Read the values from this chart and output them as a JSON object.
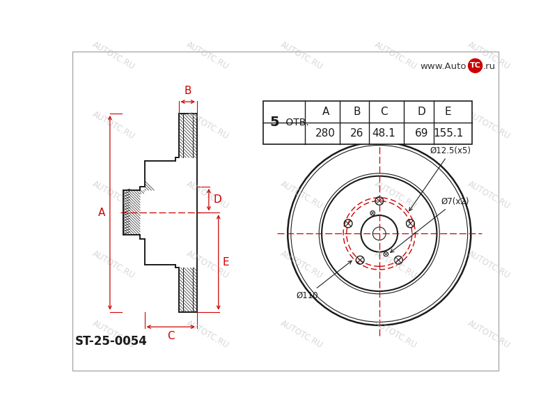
{
  "bg_color": "#ffffff",
  "line_color": "#1a1a1a",
  "red_color": "#cc0000",
  "part_number": "ST-25-0054",
  "holes_count": "5",
  "holes_label": "ОТВ.",
  "dim_A": "280",
  "dim_B": "26",
  "dim_C": "48.1",
  "dim_D": "69",
  "dim_E": "155.1",
  "label_A": "A",
  "label_B": "B",
  "label_C": "C",
  "label_D": "D",
  "label_E": "E",
  "annot_d12": "Ø12.5(x5)",
  "annot_d7": "Ø7(x2)",
  "annot_d110": "Ø110",
  "logo_text": "www.Auto",
  "logo_text2": "TC",
  "logo_text3": ".ru",
  "watermark_text": "AUTOTC.RU"
}
